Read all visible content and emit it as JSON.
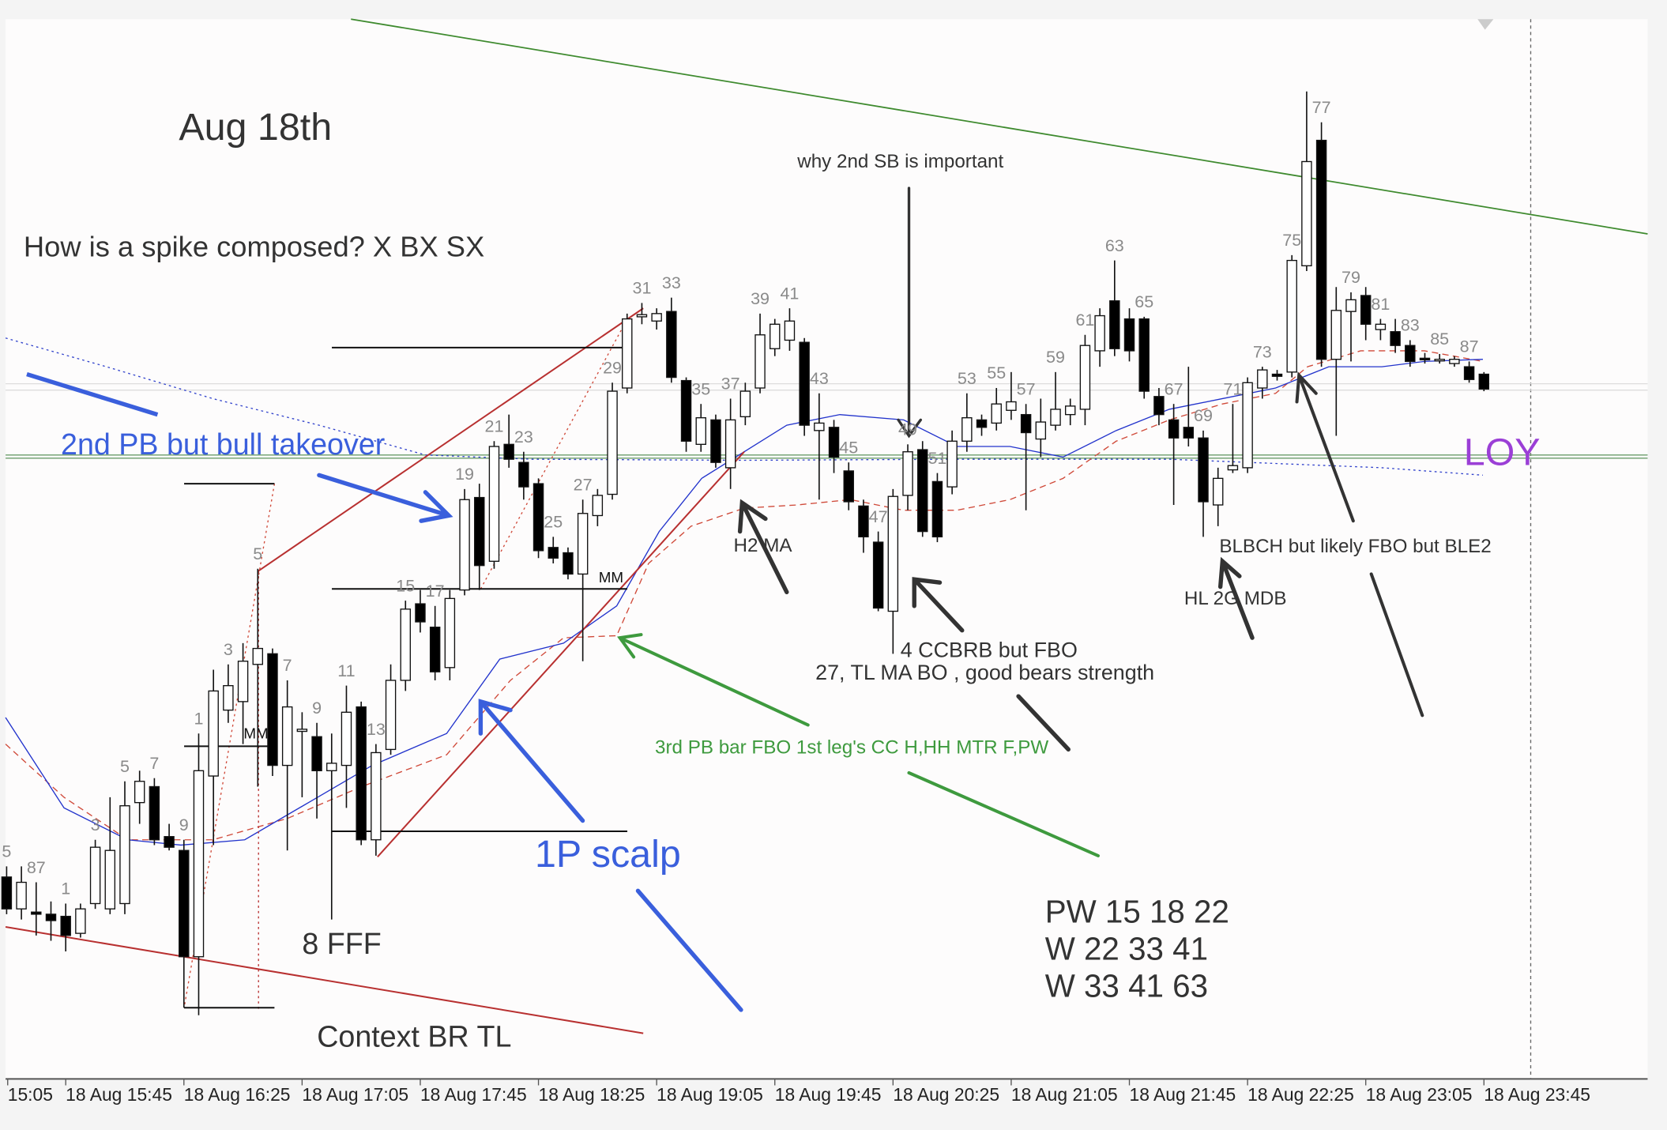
{
  "chart_data": {
    "type": "candlestick",
    "title": "Aug 18th",
    "subtitle": "How is a spike composed? X BX SX",
    "ylim": [
      -15,
      982
    ],
    "up_color": "#ffffff",
    "down_color": "#000000",
    "x_labels": [
      "15:05",
      "18 Aug 15:45",
      "18 Aug 16:25",
      "18 Aug 17:05",
      "18 Aug 17:45",
      "18 Aug 18:25",
      "18 Aug 19:05",
      "18 Aug 19:45",
      "18 Aug 20:25",
      "18 Aug 21:05",
      "18 Aug 21:45",
      "18 Aug 22:25",
      "18 Aug 23:05",
      "18 Aug 23:45"
    ],
    "open": [
      175,
      145,
      142,
      140,
      138,
      122,
      150,
      145,
      150,
      245,
      260,
      213,
      200,
      100,
      270,
      332,
      340,
      375,
      385,
      280,
      312,
      307,
      275,
      280,
      335,
      210,
      295,
      360,
      432,
      410,
      372,
      445,
      532,
      472,
      582,
      565,
      545,
      485,
      480,
      460,
      515,
      535,
      635,
      702,
      698,
      707,
      642,
      582,
      605,
      560,
      608,
      635,
      672,
      680,
      678,
      595,
      598,
      557,
      524,
      490,
      425,
      534,
      577,
      547,
      542,
      585,
      605,
      602,
      614,
      610,
      587,
      600,
      610,
      615,
      670,
      717,
      700,
      700,
      627,
      605,
      598,
      588,
      525,
      558,
      560,
      635,
      648,
      650,
      750,
      868,
      662,
      707,
      722,
      690,
      688,
      675,
      663,
      661,
      658,
      655,
      648
    ],
    "high": [
      185,
      185,
      170,
      152,
      150,
      150,
      210,
      250,
      265,
      275,
      268,
      225,
      210,
      310,
      370,
      375,
      395,
      465,
      390,
      360,
      330,
      320,
      310,
      355,
      340,
      300,
      375,
      435,
      445,
      430,
      445,
      540,
      545,
      585,
      610,
      575,
      550,
      495,
      485,
      530,
      540,
      640,
      705,
      715,
      710,
      720,
      645,
      620,
      610,
      625,
      640,
      705,
      700,
      710,
      682,
      630,
      605,
      565,
      530,
      500,
      540,
      582,
      585,
      555,
      595,
      630,
      610,
      635,
      650,
      620,
      625,
      650,
      625,
      685,
      710,
      755,
      710,
      702,
      635,
      620,
      655,
      595,
      560,
      620,
      645,
      655,
      652,
      760,
      914,
      885,
      730,
      725,
      730,
      700,
      700,
      680,
      668,
      667,
      665,
      660,
      650
    ],
    "low": [
      140,
      135,
      120,
      115,
      105,
      118,
      145,
      140,
      140,
      225,
      205,
      200,
      52,
      45,
      205,
      320,
      300,
      260,
      270,
      200,
      250,
      230,
      135,
      240,
      205,
      195,
      290,
      350,
      405,
      360,
      360,
      440,
      445,
      465,
      560,
      530,
      475,
      470,
      455,
      378,
      505,
      530,
      630,
      695,
      690,
      640,
      575,
      575,
      560,
      540,
      600,
      630,
      665,
      670,
      590,
      530,
      555,
      520,
      480,
      425,
      385,
      520,
      495,
      490,
      535,
      575,
      590,
      595,
      605,
      520,
      570,
      595,
      600,
      600,
      655,
      665,
      660,
      625,
      600,
      525,
      580,
      495,
      505,
      555,
      555,
      625,
      642,
      645,
      745,
      655,
      590,
      660,
      680,
      680,
      668,
      655,
      658,
      658,
      655,
      640,
      632
    ],
    "close": [
      145,
      170,
      140,
      134,
      120,
      145,
      203,
      200,
      242,
      265,
      210,
      203,
      100,
      275,
      350,
      355,
      378,
      390,
      280,
      335,
      314,
      275,
      282,
      330,
      210,
      292,
      360,
      427,
      415,
      368,
      437,
      530,
      468,
      580,
      568,
      542,
      482,
      475,
      460,
      517,
      534,
      632,
      700,
      704,
      705,
      645,
      585,
      607,
      565,
      605,
      632,
      685,
      695,
      698,
      600,
      602,
      570,
      528,
      495,
      428,
      533,
      575,
      500,
      495,
      585,
      607,
      598,
      620,
      622,
      593,
      603,
      615,
      618,
      675,
      703,
      672,
      670,
      632,
      610,
      588,
      588,
      528,
      550,
      562,
      640,
      652,
      646,
      755,
      848,
      662,
      708,
      718,
      695,
      695,
      675,
      660,
      662,
      662,
      662,
      643,
      634
    ],
    "bar_labels": [
      "5",
      null,
      "87",
      null,
      "1",
      null,
      "3",
      null,
      "5",
      null,
      "7",
      null,
      "9",
      "1",
      null,
      "3",
      null,
      "5",
      null,
      "7",
      null,
      "9",
      null,
      "11",
      null,
      "13",
      null,
      "15",
      null,
      "17",
      null,
      "19",
      null,
      "21",
      null,
      "23",
      null,
      "25",
      null,
      "27",
      null,
      "29",
      null,
      "31",
      null,
      "33",
      null,
      "35",
      null,
      "37",
      null,
      "39",
      null,
      "41",
      null,
      "43",
      null,
      "45",
      null,
      "47",
      null,
      "49",
      null,
      "51",
      null,
      "53",
      null,
      "55",
      null,
      "57",
      null,
      "59",
      null,
      "61",
      null,
      "63",
      null,
      "65",
      null,
      "67",
      null,
      "69",
      null,
      "71",
      null,
      "73",
      null,
      "75",
      null,
      "77",
      null,
      "79",
      null,
      "81",
      null,
      "83",
      null,
      "85",
      null,
      "87",
      null
    ],
    "annotations": {
      "pb_takeover": "2nd PB but bull takeover",
      "why_sb": "why 2nd SB is important",
      "loy": "LOY",
      "h2_ma": "H2 MA",
      "mm_1": "MM",
      "mm_2": "MM",
      "blbch": "BLBCH but likely FBO but BLE2",
      "hl_2g": "HL 2G MDB",
      "ccbrb": "4 CCBRB but FBO",
      "tl_ma": "27, TL MA BO , good bears strength",
      "third_pb": "3rd PB bar FBO 1st leg's CC H,HH MTR F,PW",
      "scalp": "1P scalp",
      "fff": "8 FFF",
      "context": "Context BR TL",
      "pw_1": "PW 15 18 22",
      "pw_2": "W 22 33 41",
      "pw_3": "W 33 41 63"
    }
  }
}
